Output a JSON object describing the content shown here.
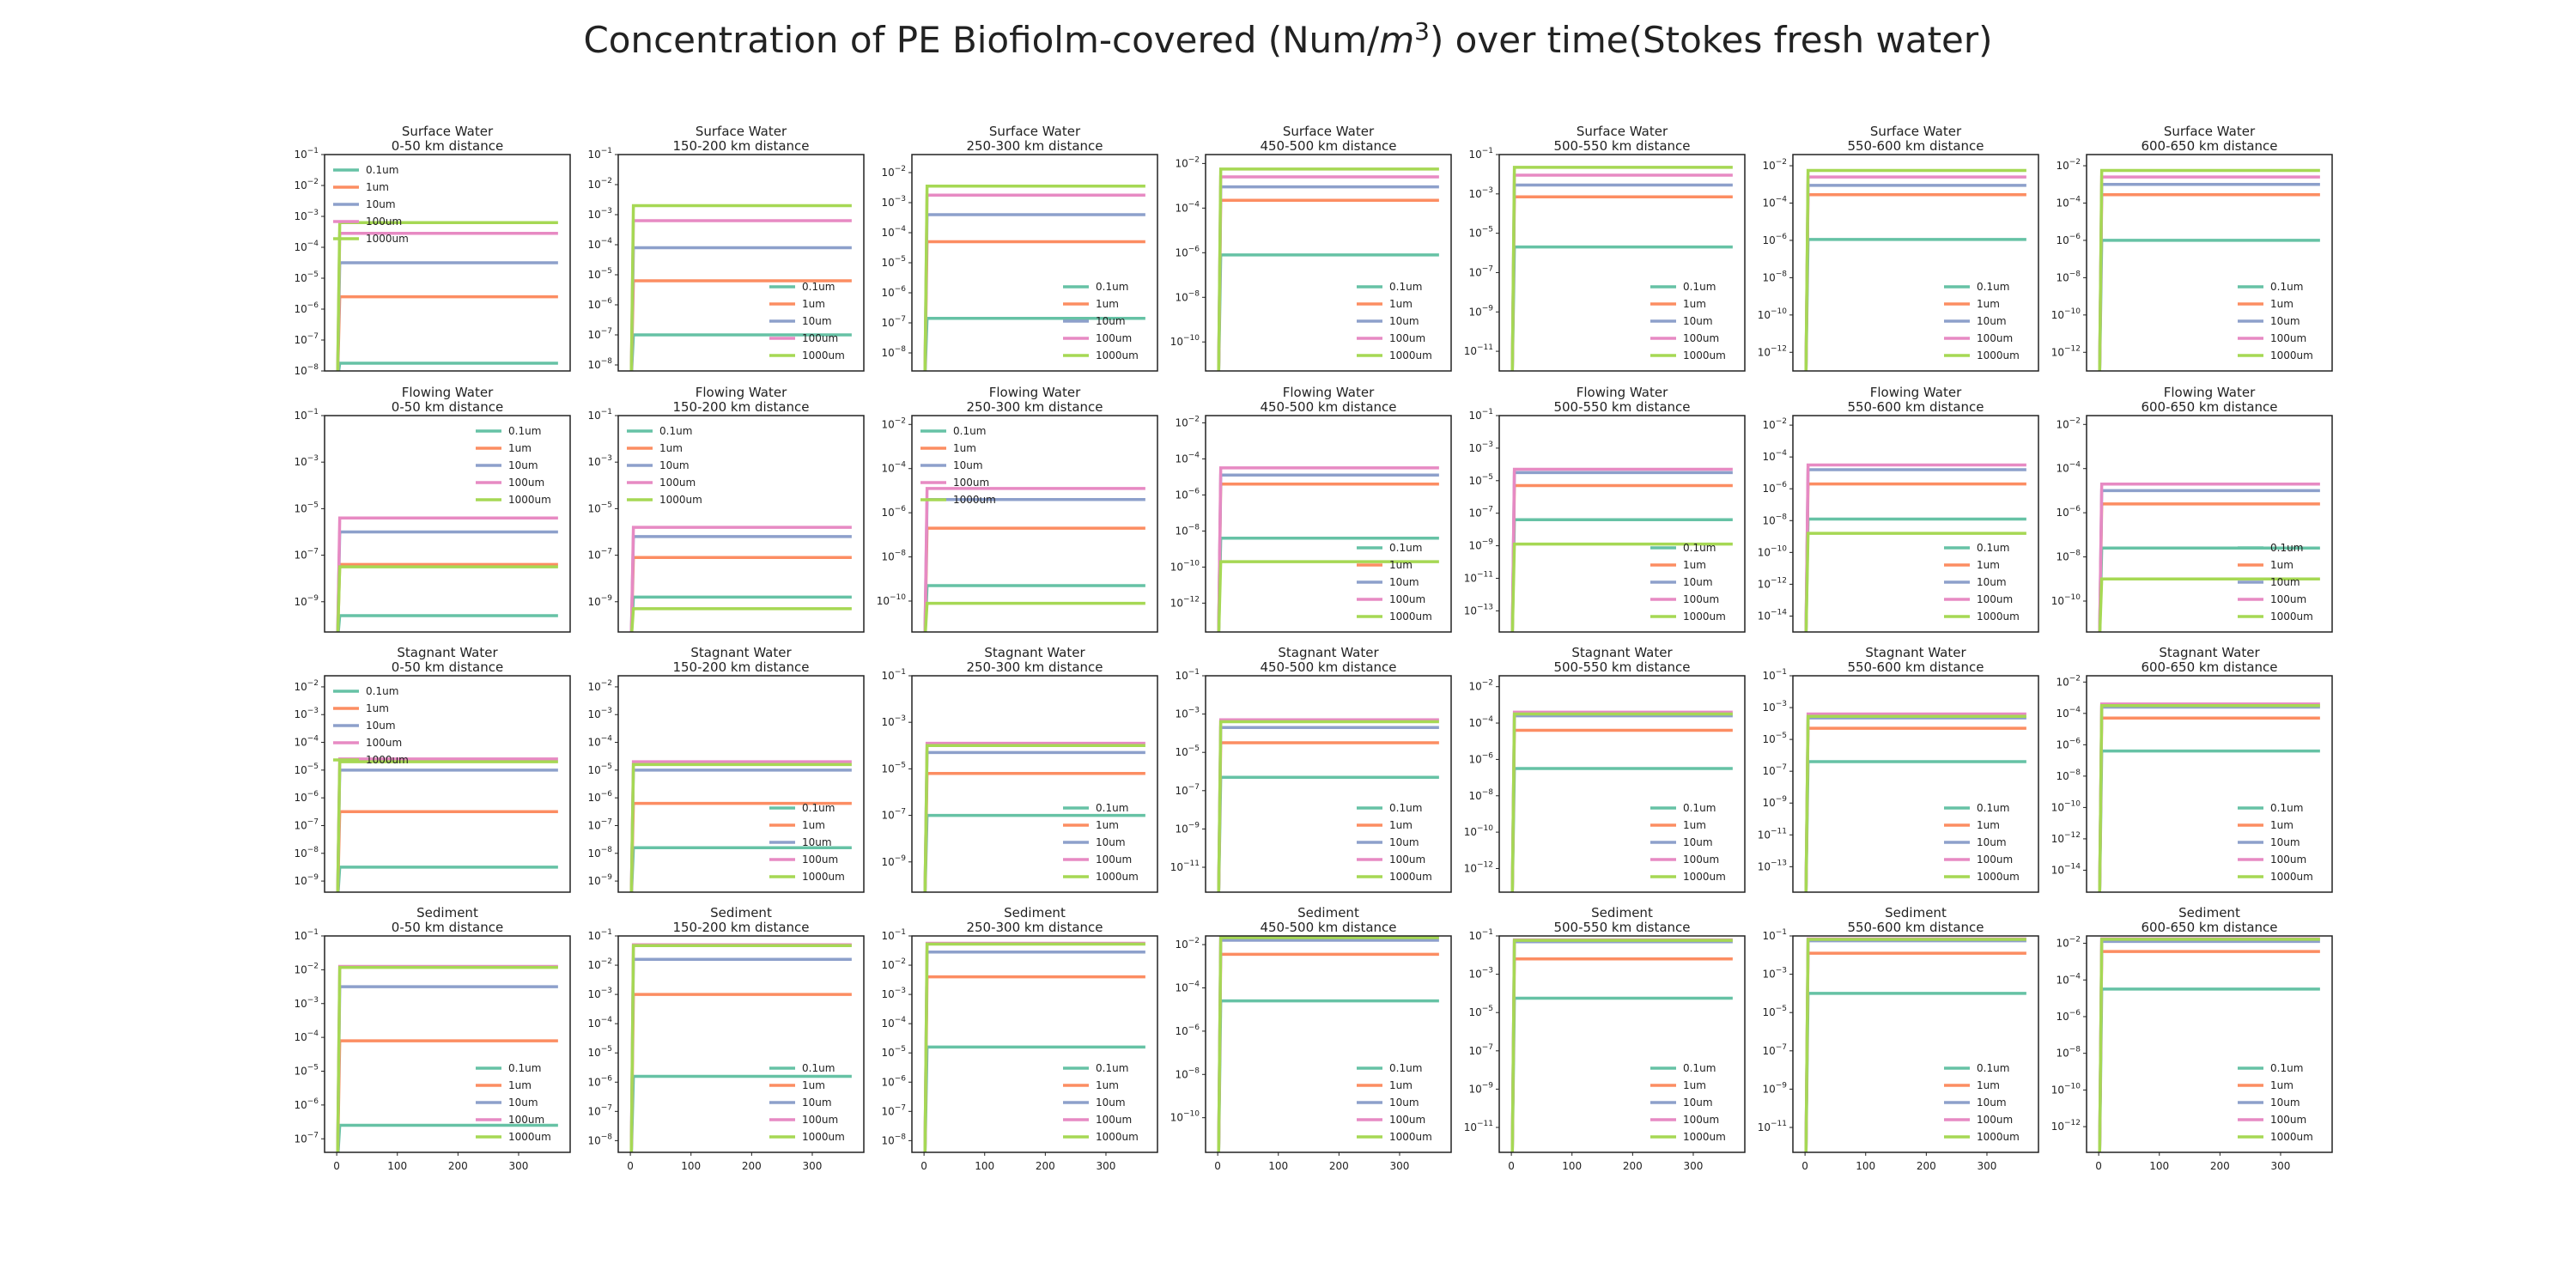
{
  "figure": {
    "title_pre": "Concentration of PE Biofiolm-covered (Num/",
    "title_m": "m",
    "title_sup": "3",
    "title_post": ") over time(Stokes fresh water)"
  },
  "chart_data": {
    "type": "line",
    "log_y": true,
    "xlim": [
      -20,
      385
    ],
    "xticks": [
      0,
      100,
      200,
      300
    ],
    "series_names": [
      "0.1um",
      "1um",
      "10um",
      "100um",
      "1000um"
    ],
    "colors": [
      "#66c2a5",
      "#fc8d62",
      "#8da0cb",
      "#e78ac3",
      "#a6d854"
    ],
    "compartments": [
      "Surface Water",
      "Flowing Water",
      "Stagnant Water",
      "Sediment"
    ],
    "distances": [
      "0-50 km distance",
      "150-200 km distance",
      "250-300 km distance",
      "450-500 km distance",
      "500-550 km distance",
      "550-600 km distance",
      "600-650 km distance"
    ],
    "panels": [
      [
        {
          "ylim": [
            -8,
            -1
          ],
          "legend": "upper-left",
          "levels": [
            -7.75,
            -5.6,
            -4.5,
            -3.55,
            -3.2
          ]
        },
        {
          "ylim": [
            -8.2,
            -1
          ],
          "legend": "lower-right",
          "levels": [
            -7,
            -5.2,
            -4.1,
            -3.2,
            -2.7
          ]
        },
        {
          "ylim": [
            -8.6,
            -1.4
          ],
          "legend": "lower-right",
          "levels": [
            -6.85,
            -4.3,
            -3.4,
            -2.75,
            -2.45
          ]
        },
        {
          "ylim": [
            -11.3,
            -1.6
          ],
          "legend": "lower-right",
          "levels": [
            -6.1,
            -3.65,
            -3.05,
            -2.6,
            -2.25
          ]
        },
        {
          "ylim": [
            -12,
            -1
          ],
          "legend": "lower-right",
          "levels": [
            -5.7,
            -3.15,
            -2.55,
            -2.05,
            -1.65
          ]
        },
        {
          "ylim": [
            -13,
            -1.4
          ],
          "legend": "lower-right",
          "levels": [
            -5.95,
            -3.55,
            -3.05,
            -2.6,
            -2.25
          ]
        },
        {
          "ylim": [
            -13,
            -1.4
          ],
          "legend": "lower-right",
          "levels": [
            -6.0,
            -3.55,
            -3.0,
            -2.6,
            -2.25
          ]
        }
      ],
      [
        {
          "ylim": [
            -10.3,
            -1
          ],
          "legend": "upper-right",
          "levels": [
            -9.6,
            -7.4,
            -6.0,
            -5.4,
            -7.5
          ]
        },
        {
          "ylim": [
            -10.3,
            -1
          ],
          "legend": "upper-left",
          "levels": [
            -8.8,
            -7.1,
            -6.2,
            -5.8,
            -9.3
          ]
        },
        {
          "ylim": [
            -11.4,
            -1.6
          ],
          "legend": "upper-left",
          "levels": [
            -9.3,
            -6.7,
            -5.4,
            -4.9,
            -10.1
          ]
        },
        {
          "ylim": [
            -13.6,
            -1.6
          ],
          "legend": "lower-right",
          "levels": [
            -8.4,
            -5.4,
            -4.9,
            -4.5,
            -9.7
          ]
        },
        {
          "ylim": [
            -14.3,
            -1
          ],
          "legend": "lower-right",
          "levels": [
            -7.4,
            -5.3,
            -4.5,
            -4.3,
            -8.9
          ]
        },
        {
          "ylim": [
            -15,
            -1.4
          ],
          "legend": "lower-right",
          "levels": [
            -7.9,
            -5.7,
            -4.8,
            -4.5,
            -8.8
          ]
        },
        {
          "ylim": [
            -11.4,
            -1.6
          ],
          "legend": "lower-right",
          "levels": [
            -7.6,
            -5.6,
            -5.0,
            -4.7,
            -9.0
          ]
        }
      ],
      [
        {
          "ylim": [
            -9.4,
            -1.6
          ],
          "legend": "upper-left",
          "levels": [
            -8.5,
            -6.5,
            -5.0,
            -4.6,
            -4.7
          ]
        },
        {
          "ylim": [
            -9.4,
            -1.6
          ],
          "legend": "lower-right",
          "levels": [
            -7.8,
            -6.2,
            -5.0,
            -4.7,
            -4.8
          ]
        },
        {
          "ylim": [
            -10.3,
            -1
          ],
          "legend": "lower-right",
          "levels": [
            -7.0,
            -5.2,
            -4.3,
            -3.9,
            -4.0
          ]
        },
        {
          "ylim": [
            -12.3,
            -1
          ],
          "legend": "lower-right",
          "levels": [
            -6.3,
            -4.5,
            -3.7,
            -3.3,
            -3.4
          ]
        },
        {
          "ylim": [
            -13.3,
            -1.4
          ],
          "legend": "lower-right",
          "levels": [
            -6.5,
            -4.4,
            -3.6,
            -3.4,
            -3.5
          ]
        },
        {
          "ylim": [
            -14.6,
            -1
          ],
          "legend": "lower-right",
          "levels": [
            -6.4,
            -4.3,
            -3.65,
            -3.4,
            -3.55
          ]
        },
        {
          "ylim": [
            -15.4,
            -1.6
          ],
          "legend": "lower-right",
          "levels": [
            -6.4,
            -4.3,
            -3.6,
            -3.4,
            -3.5
          ]
        }
      ],
      [
        {
          "ylim": [
            -7.4,
            -1
          ],
          "legend": "lower-right",
          "levels": [
            -6.6,
            -4.1,
            -2.5,
            -1.9,
            -1.93
          ]
        },
        {
          "ylim": [
            -8.4,
            -1
          ],
          "legend": "lower-right",
          "levels": [
            -5.8,
            -3.0,
            -1.8,
            -1.3,
            -1.33
          ]
        },
        {
          "ylim": [
            -8.4,
            -1
          ],
          "legend": "lower-right",
          "levels": [
            -4.8,
            -2.4,
            -1.55,
            -1.25,
            -1.28
          ]
        },
        {
          "ylim": [
            -11.6,
            -1.6
          ],
          "legend": "lower-right",
          "levels": [
            -4.6,
            -2.45,
            -1.8,
            -1.65,
            -1.68
          ]
        },
        {
          "ylim": [
            -12.3,
            -1
          ],
          "legend": "lower-right",
          "levels": [
            -4.25,
            -2.2,
            -1.3,
            -1.2,
            -1.23
          ]
        },
        {
          "ylim": [
            -12.3,
            -1
          ],
          "legend": "lower-right",
          "levels": [
            -4.0,
            -1.9,
            -1.25,
            -1.15,
            -1.18
          ]
        },
        {
          "ylim": [
            -13.4,
            -1.6
          ],
          "legend": "lower-right",
          "levels": [
            -4.5,
            -2.45,
            -1.9,
            -1.75,
            -1.78
          ]
        }
      ]
    ]
  }
}
